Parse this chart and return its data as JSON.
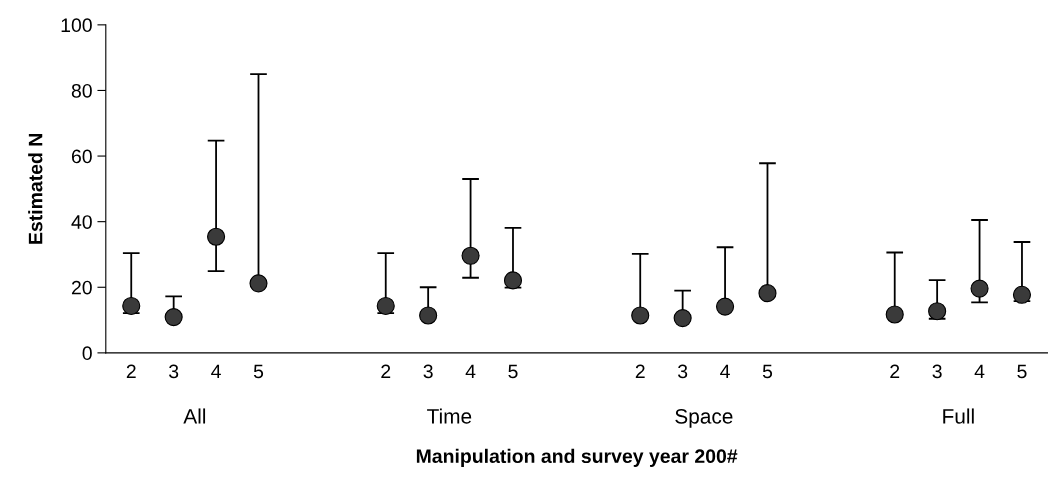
{
  "chart_data": {
    "type": "scatter",
    "xlabel": "Manipulation and survey year 200#",
    "ylabel": "Estimated N",
    "categories": [
      "2",
      "3",
      "4",
      "5",
      null,
      null,
      "2",
      "3",
      "4",
      "5",
      null,
      null,
      "2",
      "3",
      "4",
      "5",
      null,
      null,
      "2",
      "3",
      "4",
      "5"
    ],
    "series": [
      {
        "color": "#3a3a3a",
        "values": [
          14.3,
          10.9,
          35.4,
          21.2,
          null,
          null,
          14.3,
          11.4,
          29.6,
          22.1,
          null,
          null,
          11.4,
          10.6,
          14.1,
          18.2,
          null,
          null,
          11.7,
          12.7,
          19.6,
          17.7
        ],
        "errors": [
          [
            12.1,
            30.4
          ],
          [
            10.9,
            17.2
          ],
          [
            24.9,
            64.7
          ],
          [
            21.2,
            85.0
          ],
          null,
          null,
          [
            12.1,
            30.4
          ],
          [
            11.4,
            20.0
          ],
          [
            22.9,
            53.0
          ],
          [
            19.9,
            38.1
          ],
          null,
          null,
          [
            11.4,
            30.2
          ],
          [
            10.6,
            19.0
          ],
          [
            14.1,
            32.2
          ],
          [
            18.2,
            57.8
          ],
          null,
          null,
          [
            11.7,
            30.6
          ],
          [
            10.4,
            22.2
          ],
          [
            15.4,
            40.5
          ],
          [
            15.8,
            33.8
          ]
        ]
      }
    ],
    "annotations": [
      "All",
      "Time",
      "Space",
      "Full"
    ],
    "ylim": [
      0,
      100
    ],
    "yticks": [
      0,
      20,
      40,
      60,
      80,
      100
    ],
    "marker": "circle",
    "grid": false,
    "legend": false
  }
}
